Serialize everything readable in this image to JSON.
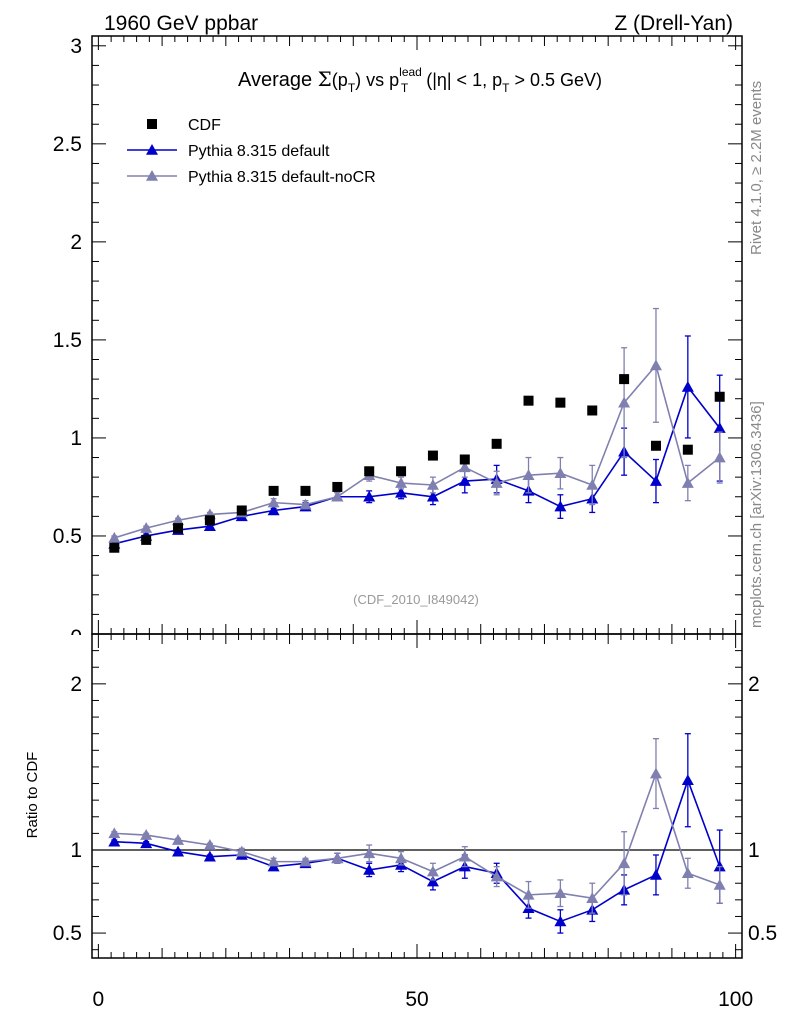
{
  "header": {
    "left": "1960 GeV ppbar",
    "right": "Z (Drell-Yan)"
  },
  "side": {
    "rivet": "Rivet 4.1.0, ≥ 2.2M events",
    "mcplots": "mcplots.cern.ch [arXiv:1306.3436]"
  },
  "chart_data": {
    "type": "scatter",
    "title": {
      "t1": "Average ",
      "sigma": "Σ",
      "t2": "(p",
      "sub_T1": "T",
      "t3": ") vs p",
      "sup_lead": "lead",
      "sub_T2": "T",
      "t4": " (|η| < 1, p",
      "sub_T3": "T",
      "t5": " > 0.5 GeV)"
    },
    "analysis_id": "(CDF_2010_I849042)",
    "ratio_ylabel": "Ratio to CDF",
    "xlim": [
      -1,
      101
    ],
    "ylim_main": [
      0,
      3.05
    ],
    "ylim_ratio": [
      0.35,
      2.3
    ],
    "x_ticks": [
      0,
      50,
      100
    ],
    "y_ticks_main": [
      0.5,
      1,
      1.5,
      2,
      2.5,
      3
    ],
    "y_ticks_main_labels": [
      "0.5",
      "1",
      "1.5",
      "2",
      "2.5",
      "3"
    ],
    "y_ticks_ratio": [
      0.5,
      1,
      2
    ],
    "y_ticks_ratio_labels": [
      "0.5",
      "1",
      "2"
    ],
    "x": [
      2.5,
      7.5,
      12.5,
      17.5,
      22.5,
      27.5,
      32.5,
      37.5,
      42.5,
      47.5,
      52.5,
      57.5,
      62.5,
      67.5,
      72.5,
      77.5,
      82.5,
      87.5,
      92.5,
      97.5
    ],
    "legend": [
      "CDF",
      "Pythia 8.315 default",
      "Pythia 8.315 default-noCR"
    ],
    "series": [
      {
        "name": "CDF",
        "color": "#000000",
        "values": [
          0.44,
          0.48,
          0.54,
          0.58,
          0.63,
          0.73,
          0.73,
          0.75,
          0.83,
          0.83,
          0.91,
          0.89,
          0.97,
          1.19,
          1.18,
          1.14,
          1.3,
          0.96,
          0.94,
          1.21
        ]
      },
      {
        "name": "Pythia 8.315 default",
        "color": "#0000cc",
        "values": [
          0.46,
          0.5,
          0.53,
          0.55,
          0.6,
          0.63,
          0.65,
          0.7,
          0.7,
          0.72,
          0.7,
          0.78,
          0.79,
          0.73,
          0.65,
          0.69,
          0.93,
          0.78,
          1.26,
          1.05
        ],
        "errors": [
          0.01,
          0.01,
          0.01,
          0.01,
          0.01,
          0.01,
          0.02,
          0.02,
          0.03,
          0.03,
          0.04,
          0.06,
          0.07,
          0.06,
          0.06,
          0.07,
          0.12,
          0.11,
          0.26,
          0.27
        ],
        "ratio": [
          1.05,
          1.04,
          0.99,
          0.96,
          0.97,
          0.9,
          0.92,
          0.95,
          0.88,
          0.91,
          0.81,
          0.9,
          0.86,
          0.65,
          0.57,
          0.64,
          0.76,
          0.85,
          1.42,
          0.9
        ],
        "ratio_errors": [
          0.01,
          0.01,
          0.01,
          0.01,
          0.02,
          0.02,
          0.02,
          0.03,
          0.04,
          0.04,
          0.05,
          0.07,
          0.06,
          0.06,
          0.07,
          0.07,
          0.09,
          0.12,
          0.28,
          0.22
        ]
      },
      {
        "name": "Pythia 8.315 default-noCR",
        "color": "#8080b0",
        "values": [
          0.49,
          0.54,
          0.58,
          0.61,
          0.62,
          0.67,
          0.66,
          0.7,
          0.81,
          0.77,
          0.76,
          0.85,
          0.77,
          0.81,
          0.82,
          0.76,
          1.18,
          1.37,
          0.77,
          0.9
        ],
        "errors": [
          0.01,
          0.01,
          0.01,
          0.01,
          0.02,
          0.02,
          0.02,
          0.02,
          0.03,
          0.03,
          0.04,
          0.05,
          0.06,
          0.09,
          0.08,
          0.1,
          0.28,
          0.29,
          0.09,
          0.13
        ],
        "ratio": [
          1.1,
          1.09,
          1.06,
          1.03,
          0.99,
          0.93,
          0.93,
          0.95,
          0.98,
          0.95,
          0.87,
          0.96,
          0.84,
          0.73,
          0.74,
          0.71,
          0.92,
          1.46,
          0.86,
          0.79
        ],
        "ratio_errors": [
          0.01,
          0.01,
          0.01,
          0.01,
          0.02,
          0.02,
          0.02,
          0.03,
          0.05,
          0.04,
          0.05,
          0.06,
          0.06,
          0.08,
          0.08,
          0.09,
          0.19,
          0.21,
          0.09,
          0.11
        ]
      }
    ]
  }
}
